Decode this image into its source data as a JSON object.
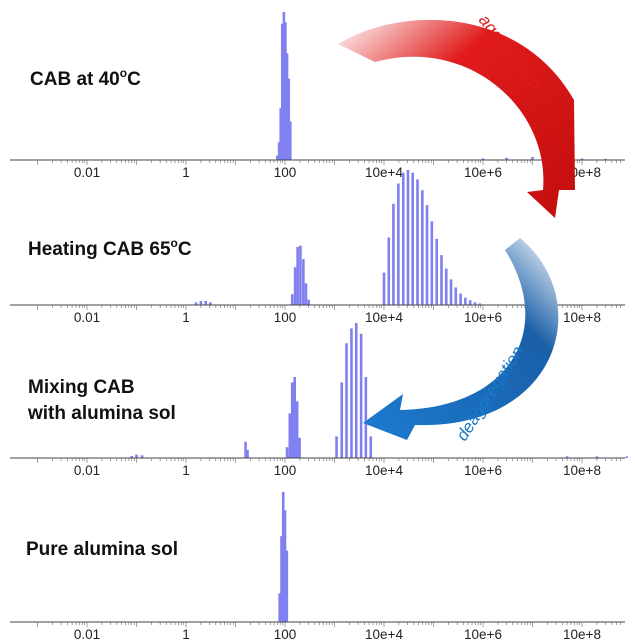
{
  "chart_data": [
    {
      "type": "bar",
      "title": "CAB at 40",
      "title_sup": "o",
      "title_suffix": "C",
      "xscale": "log",
      "xticklabels": [
        "0.01",
        "1",
        "100",
        "10e+4",
        "10e+6",
        "10e+8"
      ],
      "color": "#8080f0",
      "bars": [
        {
          "x": 70,
          "y": 0.03
        },
        {
          "x": 76,
          "y": 0.12
        },
        {
          "x": 82,
          "y": 0.35
        },
        {
          "x": 88,
          "y": 0.92
        },
        {
          "x": 95,
          "y": 1.0
        },
        {
          "x": 102,
          "y": 0.93
        },
        {
          "x": 110,
          "y": 0.72
        },
        {
          "x": 119,
          "y": 0.55
        },
        {
          "x": 128,
          "y": 0.26
        },
        {
          "x": 1000000,
          "y": 0.01
        },
        {
          "x": 3000000,
          "y": 0.015
        },
        {
          "x": 10000000,
          "y": 0.02
        },
        {
          "x": 30000000,
          "y": 0.015
        },
        {
          "x": 100000000,
          "y": 0.01
        },
        {
          "x": 300000000,
          "y": 0.008
        }
      ]
    },
    {
      "type": "bar",
      "title": "Heating CAB 65",
      "title_sup": "o",
      "title_suffix": "C",
      "xscale": "log",
      "xticklabels": [
        "0.01",
        "1",
        "100",
        "10e+4",
        "10e+6",
        "10e+8"
      ],
      "color": "#8080f0",
      "bars": [
        {
          "x": 1.6,
          "y": 0.02
        },
        {
          "x": 2.0,
          "y": 0.03
        },
        {
          "x": 2.5,
          "y": 0.03
        },
        {
          "x": 3.1,
          "y": 0.02
        },
        {
          "x": 140,
          "y": 0.08
        },
        {
          "x": 160,
          "y": 0.28
        },
        {
          "x": 180,
          "y": 0.43
        },
        {
          "x": 205,
          "y": 0.44
        },
        {
          "x": 235,
          "y": 0.34
        },
        {
          "x": 265,
          "y": 0.16
        },
        {
          "x": 300,
          "y": 0.04
        },
        {
          "x": 10000,
          "y": 0.24
        },
        {
          "x": 12500,
          "y": 0.5
        },
        {
          "x": 15500,
          "y": 0.75
        },
        {
          "x": 19500,
          "y": 0.9
        },
        {
          "x": 24500,
          "y": 0.98
        },
        {
          "x": 30500,
          "y": 1.0
        },
        {
          "x": 38000,
          "y": 0.98
        },
        {
          "x": 47500,
          "y": 0.93
        },
        {
          "x": 59500,
          "y": 0.85
        },
        {
          "x": 74000,
          "y": 0.74
        },
        {
          "x": 92500,
          "y": 0.62
        },
        {
          "x": 116000,
          "y": 0.49
        },
        {
          "x": 145000,
          "y": 0.37
        },
        {
          "x": 181000,
          "y": 0.27
        },
        {
          "x": 226000,
          "y": 0.19
        },
        {
          "x": 282000,
          "y": 0.13
        },
        {
          "x": 353000,
          "y": 0.085
        },
        {
          "x": 441000,
          "y": 0.055
        },
        {
          "x": 551000,
          "y": 0.035
        },
        {
          "x": 689000,
          "y": 0.02
        },
        {
          "x": 861000,
          "y": 0.012
        }
      ]
    },
    {
      "type": "bar",
      "title": "Mixing CAB",
      "title_line2": "with alumina sol",
      "xscale": "log",
      "xticklabels": [
        "0.01",
        "1",
        "100",
        "10e+4",
        "10e+6",
        "10e+8"
      ],
      "color": "#8080f0",
      "bars": [
        {
          "x": 0.08,
          "y": 0.015
        },
        {
          "x": 0.1,
          "y": 0.025
        },
        {
          "x": 0.13,
          "y": 0.02
        },
        {
          "x": 16,
          "y": 0.12
        },
        {
          "x": 17.5,
          "y": 0.06
        },
        {
          "x": 110,
          "y": 0.08
        },
        {
          "x": 125,
          "y": 0.33
        },
        {
          "x": 140,
          "y": 0.56
        },
        {
          "x": 157,
          "y": 0.6
        },
        {
          "x": 176,
          "y": 0.42
        },
        {
          "x": 197,
          "y": 0.15
        },
        {
          "x": 1100,
          "y": 0.16
        },
        {
          "x": 1400,
          "y": 0.56
        },
        {
          "x": 1750,
          "y": 0.85
        },
        {
          "x": 2200,
          "y": 0.96
        },
        {
          "x": 2750,
          "y": 1.0
        },
        {
          "x": 3450,
          "y": 0.92
        },
        {
          "x": 4300,
          "y": 0.6
        },
        {
          "x": 5400,
          "y": 0.16
        },
        {
          "x": 50000000,
          "y": 0.012
        },
        {
          "x": 200000000,
          "y": 0.012
        },
        {
          "x": 800000000,
          "y": 0.012
        }
      ]
    },
    {
      "type": "bar",
      "title": "Pure alumina sol",
      "xscale": "log",
      "xticklabels": [
        "0.01",
        "1",
        "100",
        "10e+4",
        "10e+6",
        "10e+8"
      ],
      "color": "#8080f0",
      "bars": [
        {
          "x": 78,
          "y": 0.22
        },
        {
          "x": 85,
          "y": 0.66
        },
        {
          "x": 92,
          "y": 1.0
        },
        {
          "x": 100,
          "y": 0.86
        },
        {
          "x": 109,
          "y": 0.55
        }
      ]
    }
  ],
  "annotations": {
    "top_arrow": {
      "label": "aggregation",
      "color": "#e11b1b"
    },
    "bottom_arrow": {
      "label": "deaggregation",
      "color": "#1a5fa8"
    }
  }
}
